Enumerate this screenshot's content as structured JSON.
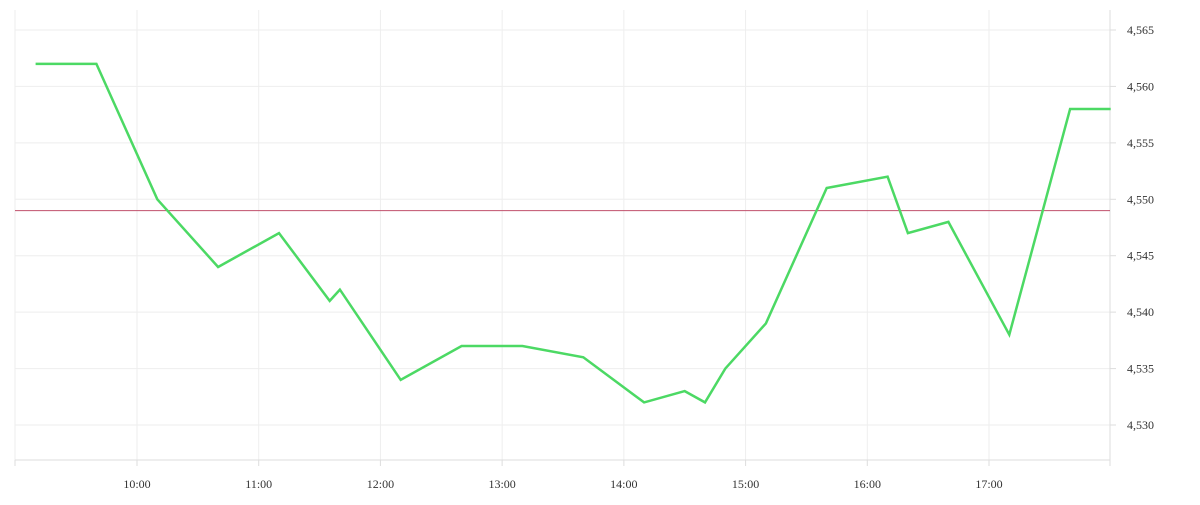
{
  "chart_data": {
    "type": "line",
    "title": "",
    "xlabel": "",
    "ylabel": "",
    "x_ticks": [
      "10:00",
      "11:00",
      "12:00",
      "13:00",
      "14:00",
      "15:00",
      "16:00",
      "17:00"
    ],
    "y_ticks": [
      "4,530",
      "4,535",
      "4,540",
      "4,545",
      "4,550",
      "4,555",
      "4,560",
      "4,565"
    ],
    "x_range": [
      "09:10",
      "18:00"
    ],
    "ylim": [
      4526,
      4567
    ],
    "grid": true,
    "reference_line": {
      "value": 4549,
      "color": "#c0506b"
    },
    "series": [
      {
        "color": "#4cd964",
        "points": [
          {
            "x": "09:10",
            "y": 4562
          },
          {
            "x": "09:40",
            "y": 4562
          },
          {
            "x": "10:10",
            "y": 4550
          },
          {
            "x": "10:40",
            "y": 4544
          },
          {
            "x": "11:10",
            "y": 4547
          },
          {
            "x": "11:35",
            "y": 4541
          },
          {
            "x": "11:40",
            "y": 4542
          },
          {
            "x": "12:10",
            "y": 4534
          },
          {
            "x": "12:40",
            "y": 4537
          },
          {
            "x": "13:10",
            "y": 4537
          },
          {
            "x": "13:40",
            "y": 4536
          },
          {
            "x": "14:10",
            "y": 4532
          },
          {
            "x": "14:30",
            "y": 4533
          },
          {
            "x": "14:40",
            "y": 4532
          },
          {
            "x": "14:50",
            "y": 4535
          },
          {
            "x": "15:10",
            "y": 4539
          },
          {
            "x": "15:40",
            "y": 4551
          },
          {
            "x": "16:10",
            "y": 4552
          },
          {
            "x": "16:20",
            "y": 4547
          },
          {
            "x": "16:40",
            "y": 4548
          },
          {
            "x": "17:10",
            "y": 4538
          },
          {
            "x": "17:40",
            "y": 4558
          },
          {
            "x": "18:00",
            "y": 4558
          }
        ]
      }
    ]
  }
}
